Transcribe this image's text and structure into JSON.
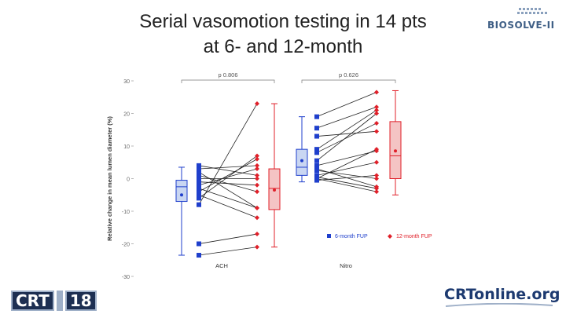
{
  "slide": {
    "title_line1": "Serial vasomotion testing in 14 pts",
    "title_line2": "at 6- and 12-month",
    "logo_text": "BIOSOLVE-II",
    "footer_left": [
      "CRT",
      "18"
    ],
    "footer_right": "CRTonline.org"
  },
  "chart_data": {
    "type": "box-with-paired-lines",
    "ylabel": "Relative change in mean lumen diameter (%)",
    "ylim": [
      -30,
      30
    ],
    "yticks": [
      30,
      20,
      10,
      0,
      -10,
      -20,
      -30
    ],
    "groups": [
      {
        "name": "ACH",
        "p_value": "p 0.806",
        "box6": {
          "min": -23.5,
          "q1": -7,
          "median": -2.5,
          "q3": -0.5,
          "max": 3.5,
          "mean": -5
        },
        "box12": {
          "min": -21,
          "q1": -9.5,
          "median": -3,
          "q3": 3,
          "max": 23,
          "mean": -3.5
        },
        "pairs": [
          [
            -23.5,
            -21
          ],
          [
            -20,
            -17
          ],
          [
            -8,
            23
          ],
          [
            -6,
            7
          ],
          [
            -5,
            -12
          ],
          [
            -4,
            6
          ],
          [
            -3,
            -9
          ],
          [
            -2,
            3
          ],
          [
            -1,
            -2
          ],
          [
            0,
            0
          ],
          [
            1,
            -4
          ],
          [
            2,
            -9
          ],
          [
            3,
            4
          ],
          [
            4,
            1
          ]
        ]
      },
      {
        "name": "Nitro",
        "p_value": "p 0.626",
        "box6": {
          "min": -1,
          "q1": 1,
          "median": 3.5,
          "q3": 9,
          "max": 19,
          "mean": 5.5
        },
        "box12": {
          "min": -5,
          "q1": 0,
          "median": 7,
          "q3": 17.5,
          "max": 27,
          "mean": 8.5
        },
        "pairs": [
          [
            19,
            26.5
          ],
          [
            15.5,
            22
          ],
          [
            13,
            14.5
          ],
          [
            9,
            21
          ],
          [
            8,
            17
          ],
          [
            5.5,
            20
          ],
          [
            4,
            8.5
          ],
          [
            3,
            -2.5
          ],
          [
            2.5,
            0
          ],
          [
            1,
            5
          ],
          [
            0.5,
            -3
          ],
          [
            0,
            9
          ],
          [
            -0.5,
            1
          ],
          [
            0,
            -4
          ]
        ]
      }
    ],
    "legend": [
      {
        "name": "6-month FUP",
        "color": "#1f3fcc",
        "marker": "square"
      },
      {
        "name": "12-month FUP",
        "color": "#e0202a",
        "marker": "diamond"
      }
    ],
    "legend_position": "bottom-right"
  }
}
